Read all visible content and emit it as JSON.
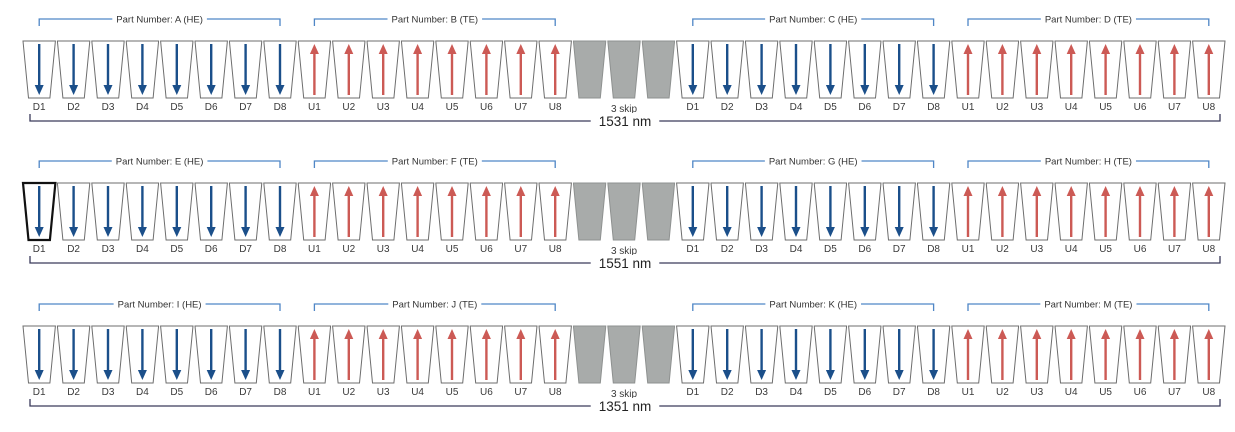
{
  "colors": {
    "slot_outline": "#6d6d6d",
    "down_arrow": "#1b4f8a",
    "up_arrow": "#cc5a55",
    "skip_fill": "#a8abaa",
    "bracket_blue": "#4f86c6",
    "bracket_dark": "#3a3a5a"
  },
  "skip_label": "3 skip",
  "rows": [
    {
      "wavelength": "1531 nm",
      "groups": [
        {
          "part": "Part Number: A (HE)",
          "direction": "down",
          "labels": [
            "D1",
            "D2",
            "D3",
            "D4",
            "D5",
            "D6",
            "D7",
            "D8"
          ]
        },
        {
          "part": "Part Number: B (TE)",
          "direction": "up",
          "labels": [
            "U1",
            "U2",
            "U3",
            "U4",
            "U5",
            "U6",
            "U7",
            "U8"
          ]
        },
        {
          "part": "Part Number: C (HE)",
          "direction": "down",
          "labels": [
            "D1",
            "D2",
            "D3",
            "D4",
            "D5",
            "D6",
            "D7",
            "D8"
          ]
        },
        {
          "part": "Part Number: D (TE)",
          "direction": "up",
          "labels": [
            "U1",
            "U2",
            "U3",
            "U4",
            "U5",
            "U6",
            "U7",
            "U8"
          ]
        }
      ]
    },
    {
      "wavelength": "1551 nm",
      "groups": [
        {
          "part": "Part Number: E (HE)",
          "direction": "down",
          "labels": [
            "D1",
            "D2",
            "D3",
            "D4",
            "D5",
            "D6",
            "D7",
            "D8"
          ]
        },
        {
          "part": "Part Number: F (TE)",
          "direction": "up",
          "labels": [
            "U1",
            "U2",
            "U3",
            "U4",
            "U5",
            "U6",
            "U7",
            "U8"
          ]
        },
        {
          "part": "Part Number: G (HE)",
          "direction": "down",
          "labels": [
            "D1",
            "D2",
            "D3",
            "D4",
            "D5",
            "D6",
            "D7",
            "D8"
          ]
        },
        {
          "part": "Part Number: H (TE)",
          "direction": "up",
          "labels": [
            "U1",
            "U2",
            "U3",
            "U4",
            "U5",
            "U6",
            "U7",
            "U8"
          ]
        }
      ]
    },
    {
      "wavelength": "1351 nm",
      "groups": [
        {
          "part": "Part Number: I (HE)",
          "direction": "down",
          "labels": [
            "D1",
            "D2",
            "D3",
            "D4",
            "D5",
            "D6",
            "D7",
            "D8"
          ]
        },
        {
          "part": "Part Number: J (TE)",
          "direction": "up",
          "labels": [
            "U1",
            "U2",
            "U3",
            "U4",
            "U5",
            "U6",
            "U7",
            "U8"
          ]
        },
        {
          "part": "Part Number: K (HE)",
          "direction": "down",
          "labels": [
            "D1",
            "D2",
            "D3",
            "D4",
            "D5",
            "D6",
            "D7",
            "D8"
          ]
        },
        {
          "part": "Part Number: M (TE)",
          "direction": "up",
          "labels": [
            "U1",
            "U2",
            "U3",
            "U4",
            "U5",
            "U6",
            "U7",
            "U8"
          ]
        }
      ]
    }
  ]
}
